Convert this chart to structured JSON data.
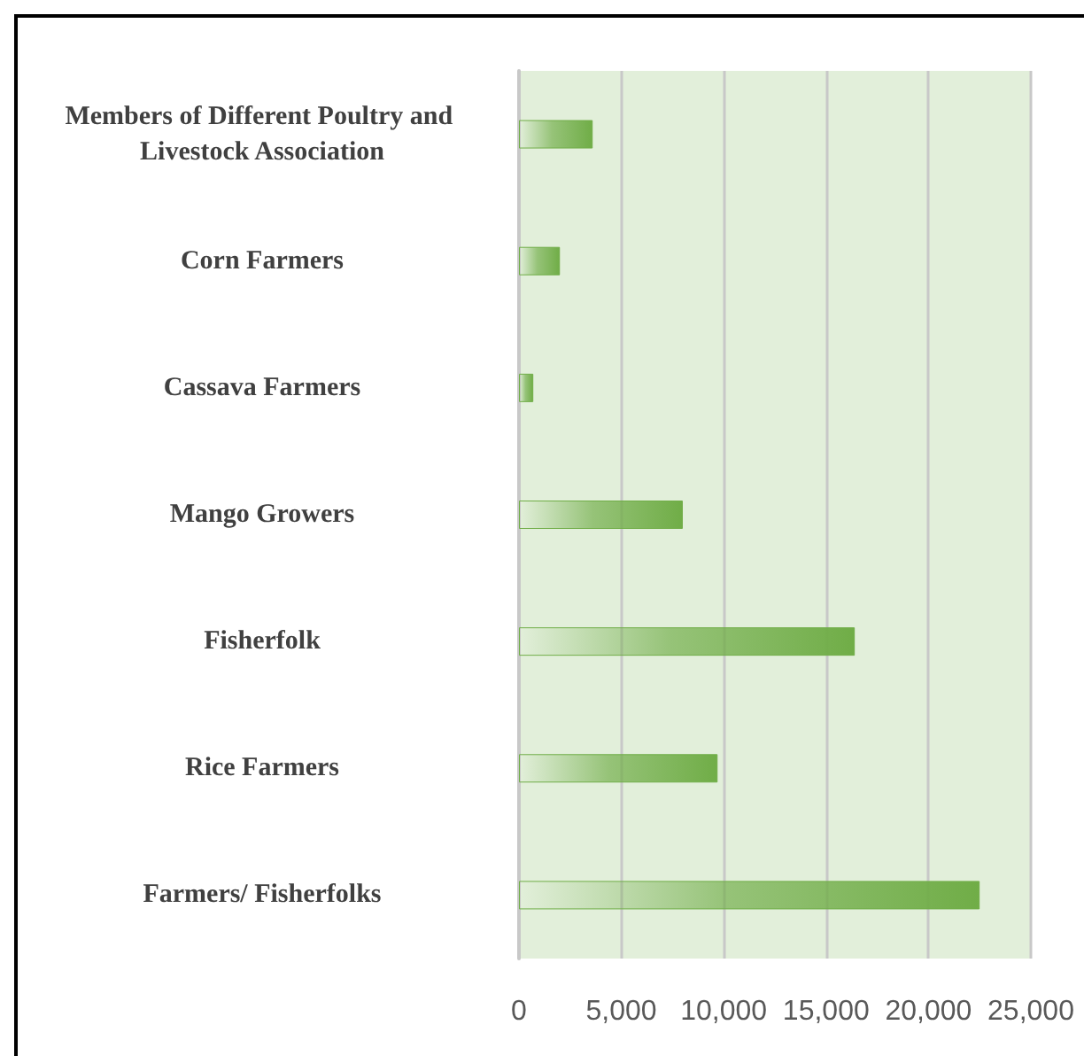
{
  "chart_data": {
    "type": "bar",
    "orientation": "horizontal",
    "categories": [
      "Members of Different Poultry and Livestock Association",
      "Corn Farmers",
      "Cassava Farmers",
      "Mango Growers",
      "Fisherfolk",
      "Rice Farmers",
      "Farmers/ Fisherfolks"
    ],
    "values": [
      3600,
      2000,
      700,
      8000,
      16400,
      9700,
      22500
    ],
    "color": "#70ad47",
    "xlim": [
      0,
      25000
    ],
    "xticks": [
      0,
      {
        "value": 5000,
        "label": "5,000"
      },
      {
        "value": 10000,
        "label": "10,000"
      },
      {
        "value": 15000,
        "label": "15,000"
      },
      {
        "value": 20000,
        "label": "20,000"
      },
      {
        "value": 25000,
        "label": "25,000"
      }
    ],
    "grid": "x"
  }
}
